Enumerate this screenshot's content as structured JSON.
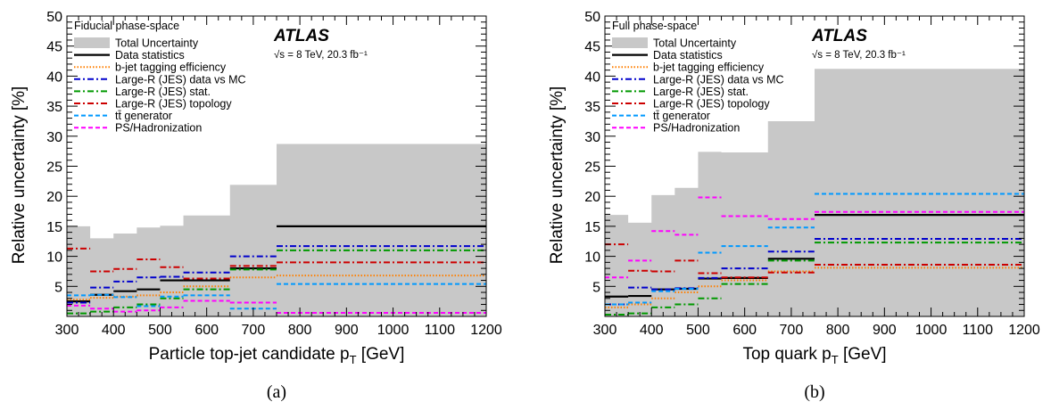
{
  "chart_data": [
    {
      "type": "line",
      "panel": "(a)",
      "phase_space": "Fiducial phase-space",
      "experiment": "ATLAS",
      "energy_label": "√s = 8 TeV, 20.3 fb⁻¹",
      "xlabel": "Particle top-jet candidate p_T [GeV]",
      "ylabel": "Relative uncertainty [%]",
      "xlim": [
        300,
        1200
      ],
      "ylim": [
        0,
        50
      ],
      "bin_edges": [
        300,
        350,
        400,
        450,
        500,
        550,
        650,
        750,
        1200
      ],
      "x_ticks": [
        300,
        400,
        500,
        600,
        700,
        800,
        900,
        1000,
        1100,
        1200
      ],
      "y_ticks": [
        5,
        10,
        15,
        20,
        25,
        30,
        35,
        40,
        45,
        50
      ],
      "series": [
        {
          "name": "Total Uncertainty",
          "values": [
            15.0,
            13.0,
            13.8,
            14.8,
            15.1,
            16.8,
            21.9,
            28.7
          ]
        },
        {
          "name": "Data statistics",
          "values": [
            2.5,
            3.6,
            4.2,
            4.5,
            6.0,
            6.0,
            8.0,
            15.0
          ]
        },
        {
          "name": "b-jet tagging efficiency",
          "values": [
            2.8,
            3.1,
            3.3,
            3.5,
            4.0,
            5.0,
            6.5,
            6.8
          ]
        },
        {
          "name": "Large-R (JES) data vs MC",
          "values": [
            2.3,
            4.8,
            5.8,
            6.5,
            6.6,
            7.3,
            10.0,
            11.7
          ]
        },
        {
          "name": "Large-R (JES) stat.",
          "values": [
            0.5,
            0.8,
            1.5,
            2.0,
            3.0,
            4.5,
            7.8,
            11.0
          ]
        },
        {
          "name": "Large-R (JES) topology",
          "values": [
            11.3,
            7.5,
            7.9,
            9.5,
            8.2,
            6.3,
            8.4,
            9.0
          ]
        },
        {
          "name": "tt̄ generator",
          "values": [
            3.5,
            3.6,
            3.2,
            1.7,
            3.3,
            3.5,
            1.3,
            5.4
          ]
        },
        {
          "name": "PS/Hadronization",
          "values": [
            1.8,
            1.3,
            0.8,
            1.0,
            1.5,
            2.6,
            2.3,
            0.6
          ]
        }
      ]
    },
    {
      "type": "line",
      "panel": "(b)",
      "phase_space": "Full phase-space",
      "experiment": "ATLAS",
      "energy_label": "√s = 8 TeV, 20.3 fb⁻¹",
      "xlabel": "Top quark p_T [GeV]",
      "ylabel": "Relative uncertainty [%]",
      "xlim": [
        300,
        1200
      ],
      "ylim": [
        0,
        50
      ],
      "bin_edges": [
        300,
        350,
        400,
        450,
        500,
        550,
        650,
        750,
        1200
      ],
      "x_ticks": [
        300,
        400,
        500,
        600,
        700,
        800,
        900,
        1000,
        1100,
        1200
      ],
      "y_ticks": [
        5,
        10,
        15,
        20,
        25,
        30,
        35,
        40,
        45,
        50
      ],
      "series": [
        {
          "name": "Total Uncertainty",
          "values": [
            16.9,
            15.6,
            20.2,
            21.4,
            27.4,
            27.3,
            32.5,
            41.2
          ]
        },
        {
          "name": "Data statistics",
          "values": [
            3.3,
            3.4,
            4.5,
            4.6,
            6.3,
            6.4,
            9.6,
            16.9
          ]
        },
        {
          "name": "b-jet tagging efficiency",
          "values": [
            1.5,
            2.0,
            3.0,
            4.0,
            5.0,
            6.0,
            7.5,
            8.1
          ]
        },
        {
          "name": "Large-R (JES) data vs MC",
          "values": [
            2.0,
            4.8,
            4.5,
            4.7,
            6.4,
            8.0,
            10.8,
            12.9
          ]
        },
        {
          "name": "Large-R (JES) stat.",
          "values": [
            0.3,
            0.5,
            1.5,
            2.0,
            3.0,
            5.4,
            9.3,
            12.3
          ]
        },
        {
          "name": "Large-R (JES) topology",
          "values": [
            12.0,
            7.6,
            7.5,
            9.3,
            7.2,
            6.5,
            7.3,
            8.6
          ]
        },
        {
          "name": "tt̄ generator",
          "values": [
            2.0,
            2.3,
            4.2,
            4.6,
            10.6,
            11.7,
            14.8,
            20.4
          ]
        },
        {
          "name": "PS/Hadronization",
          "values": [
            6.5,
            9.3,
            14.2,
            13.6,
            19.8,
            16.7,
            16.2,
            17.4
          ]
        }
      ]
    }
  ],
  "legend_styles": [
    {
      "name": "Total Uncertainty",
      "color": "#c8c8c8",
      "kind": "fill"
    },
    {
      "name": "Data statistics",
      "color": "#000000",
      "kind": "solid"
    },
    {
      "name": "b-jet tagging efficiency",
      "color": "#ff7f00",
      "kind": "dotted"
    },
    {
      "name": "Large-R (JES) data vs MC",
      "color": "#0000cc",
      "kind": "dashdot"
    },
    {
      "name": "Large-R (JES) stat.",
      "color": "#009900",
      "kind": "dashdot"
    },
    {
      "name": "Large-R (JES) topology",
      "color": "#cc0000",
      "kind": "dashdot"
    },
    {
      "name": "tt̄ generator",
      "color": "#0099ff",
      "kind": "dashed"
    },
    {
      "name": "PS/Hadronization",
      "color": "#ff00ff",
      "kind": "dashed"
    }
  ]
}
